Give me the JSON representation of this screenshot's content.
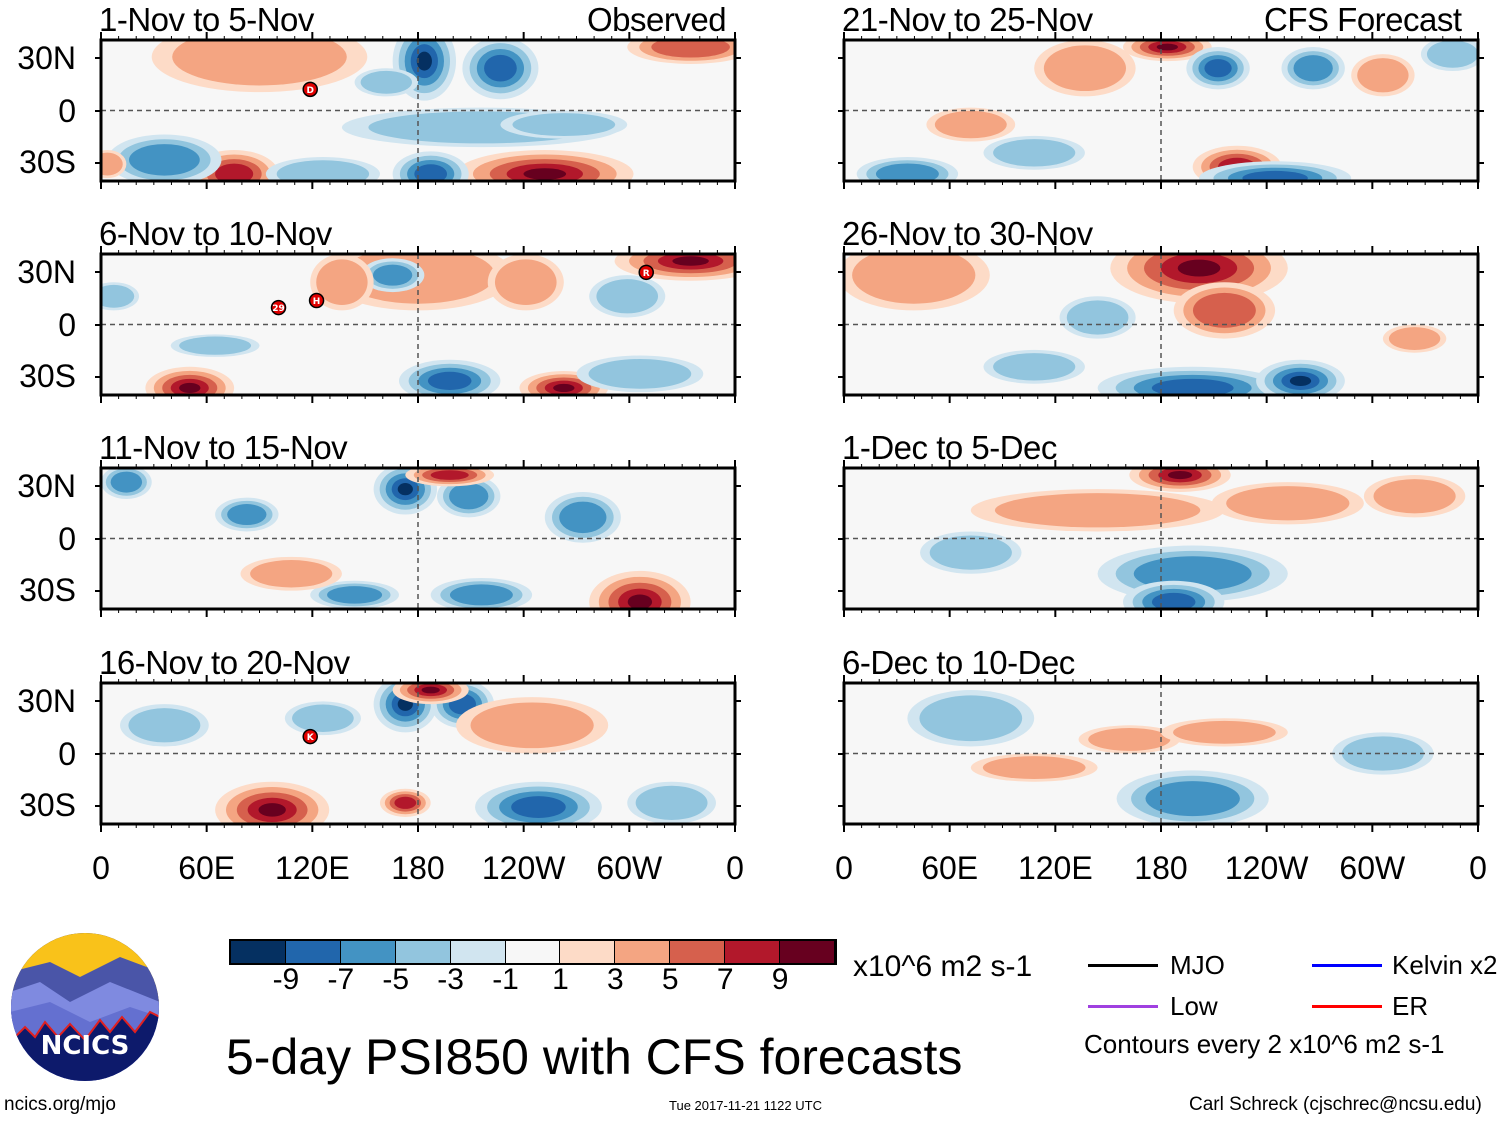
{
  "figure_title": "5-day PSI850 with CFS forecasts",
  "left_column_label": "Observed",
  "right_column_label": "CFS Forecast",
  "panels": [
    {
      "title": "1-Nov to 5-Nov",
      "storms": [
        "D"
      ]
    },
    {
      "title": "6-Nov to 10-Nov",
      "storms": [
        "29",
        "H",
        "R"
      ]
    },
    {
      "title": "11-Nov to 15-Nov",
      "storms": []
    },
    {
      "title": "16-Nov to 20-Nov",
      "storms": [
        "K"
      ]
    },
    {
      "title": "21-Nov to 25-Nov",
      "storms": []
    },
    {
      "title": "26-Nov to 30-Nov",
      "storms": []
    },
    {
      "title": "1-Dec to 5-Dec",
      "storms": []
    },
    {
      "title": "6-Dec to 10-Dec",
      "storms": []
    }
  ],
  "lat_labels": [
    "30N",
    "0",
    "30S"
  ],
  "lon_labels": [
    "0",
    "60E",
    "120E",
    "180",
    "120W",
    "60W",
    "0"
  ],
  "colorbar": {
    "labels": [
      "-9",
      "-7",
      "-5",
      "-3",
      "-1",
      "1",
      "3",
      "5",
      "7",
      "9"
    ],
    "colors": [
      "#053061",
      "#2166ac",
      "#4393c3",
      "#92c5de",
      "#d1e5f0",
      "#f7f7f7",
      "#fddbc7",
      "#f4a582",
      "#d6604d",
      "#b2182b",
      "#67001f"
    ],
    "units": "x10^6 m2 s-1"
  },
  "legend": {
    "items": [
      {
        "label": "MJO",
        "color": "#000000"
      },
      {
        "label": "Kelvin x2",
        "color": "#0000ff"
      },
      {
        "label": "Low",
        "color": "#a040e0"
      },
      {
        "label": "ER",
        "color": "#ff0000"
      }
    ],
    "contours_note": "Contours every 2 x10^6 m2 s-1"
  },
  "logo_text": "NCICS",
  "footer": {
    "url": "ncics.org/mjo",
    "timestamp": "Tue 2017-11-21 1122 UTC",
    "author": "Carl Schreck (cjschrec@ncsu.edu)"
  }
}
